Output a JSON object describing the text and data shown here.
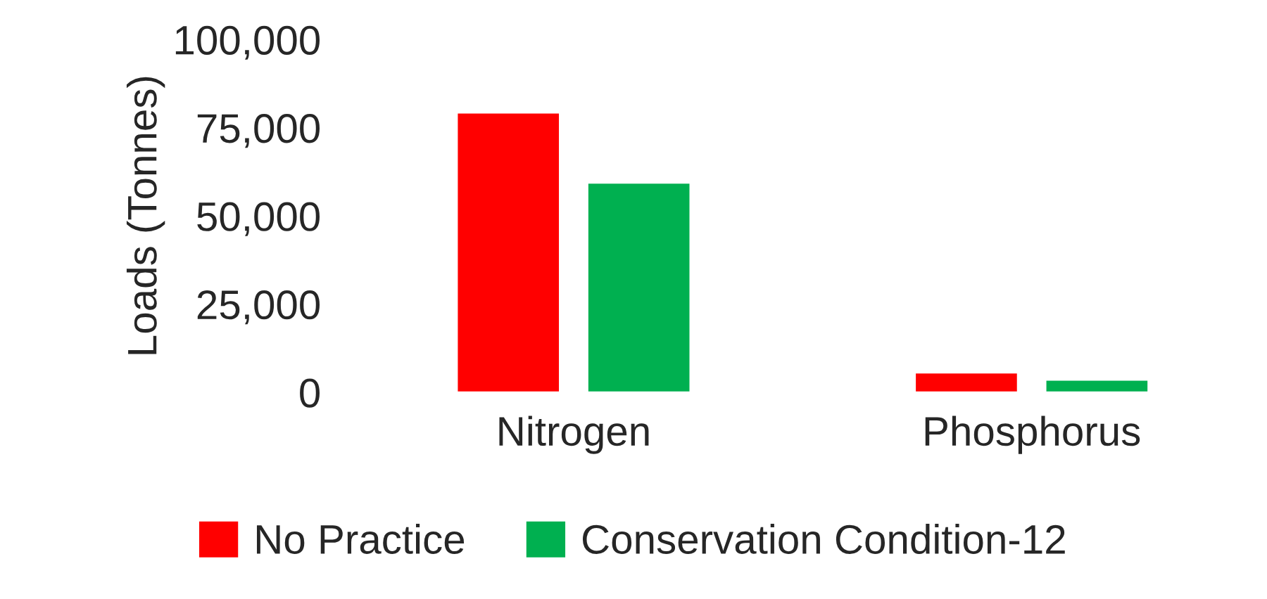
{
  "chart_data": {
    "type": "bar",
    "ylabel": "Loads (Tonnes)",
    "categories": [
      "Nitrogen",
      "Phosphorus"
    ],
    "series": [
      {
        "name": "No Practice",
        "color": "#ff0000",
        "values": [
          79300,
          5600
        ]
      },
      {
        "name": "Conservation Condition-12",
        "color": "#00b050",
        "values": [
          59400,
          3600
        ]
      }
    ],
    "ylim": [
      0,
      100000
    ],
    "yticks": [
      {
        "value": 0,
        "label": "0"
      },
      {
        "value": 25000,
        "label": "25,000"
      },
      {
        "value": 50000,
        "label": "50,000"
      },
      {
        "value": 75000,
        "label": "75,000"
      },
      {
        "value": 100000,
        "label": "100,000"
      }
    ],
    "legend": "bottom"
  }
}
